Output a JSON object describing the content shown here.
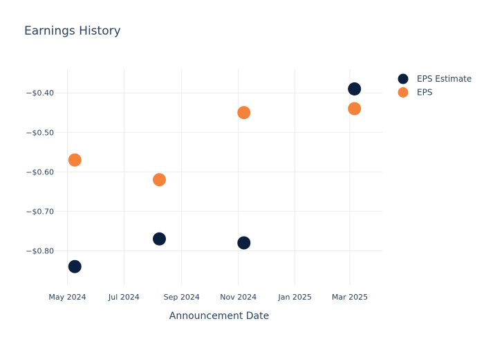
{
  "chart_data": {
    "type": "scatter",
    "title": "Earnings History",
    "xlabel": "Announcement Date",
    "ylabel": "",
    "x_ticks": [
      "2024-05-01",
      "2024-07-01",
      "2024-09-01",
      "2024-11-01",
      "2025-01-01",
      "2025-03-01"
    ],
    "x_tick_labels": [
      "May 2024",
      "Jul 2024",
      "Sep 2024",
      "Nov 2024",
      "Jan 2025",
      "Mar 2025"
    ],
    "y_ticks": [
      -0.8,
      -0.7,
      -0.6,
      -0.5,
      -0.4
    ],
    "y_tick_labels": [
      "−$0.80",
      "−$0.70",
      "−$0.60",
      "−$0.50",
      "−$0.40"
    ],
    "xlim": [
      "2024-04-18",
      "2025-04-05"
    ],
    "ylim": [
      -0.887,
      -0.34
    ],
    "grid": true,
    "legend_position": "top-right",
    "series": [
      {
        "name": "EPS Estimate",
        "color": "#0b1f3f",
        "points": [
          {
            "x": "2024-05-09",
            "y": -0.84
          },
          {
            "x": "2024-08-08",
            "y": -0.77
          },
          {
            "x": "2024-11-07",
            "y": -0.78
          },
          {
            "x": "2025-03-06",
            "y": -0.39
          }
        ]
      },
      {
        "name": "EPS",
        "color": "#f4823a",
        "points": [
          {
            "x": "2024-05-09",
            "y": -0.57
          },
          {
            "x": "2024-08-08",
            "y": -0.62
          },
          {
            "x": "2024-11-07",
            "y": -0.45
          },
          {
            "x": "2025-03-06",
            "y": -0.44
          }
        ]
      }
    ]
  }
}
